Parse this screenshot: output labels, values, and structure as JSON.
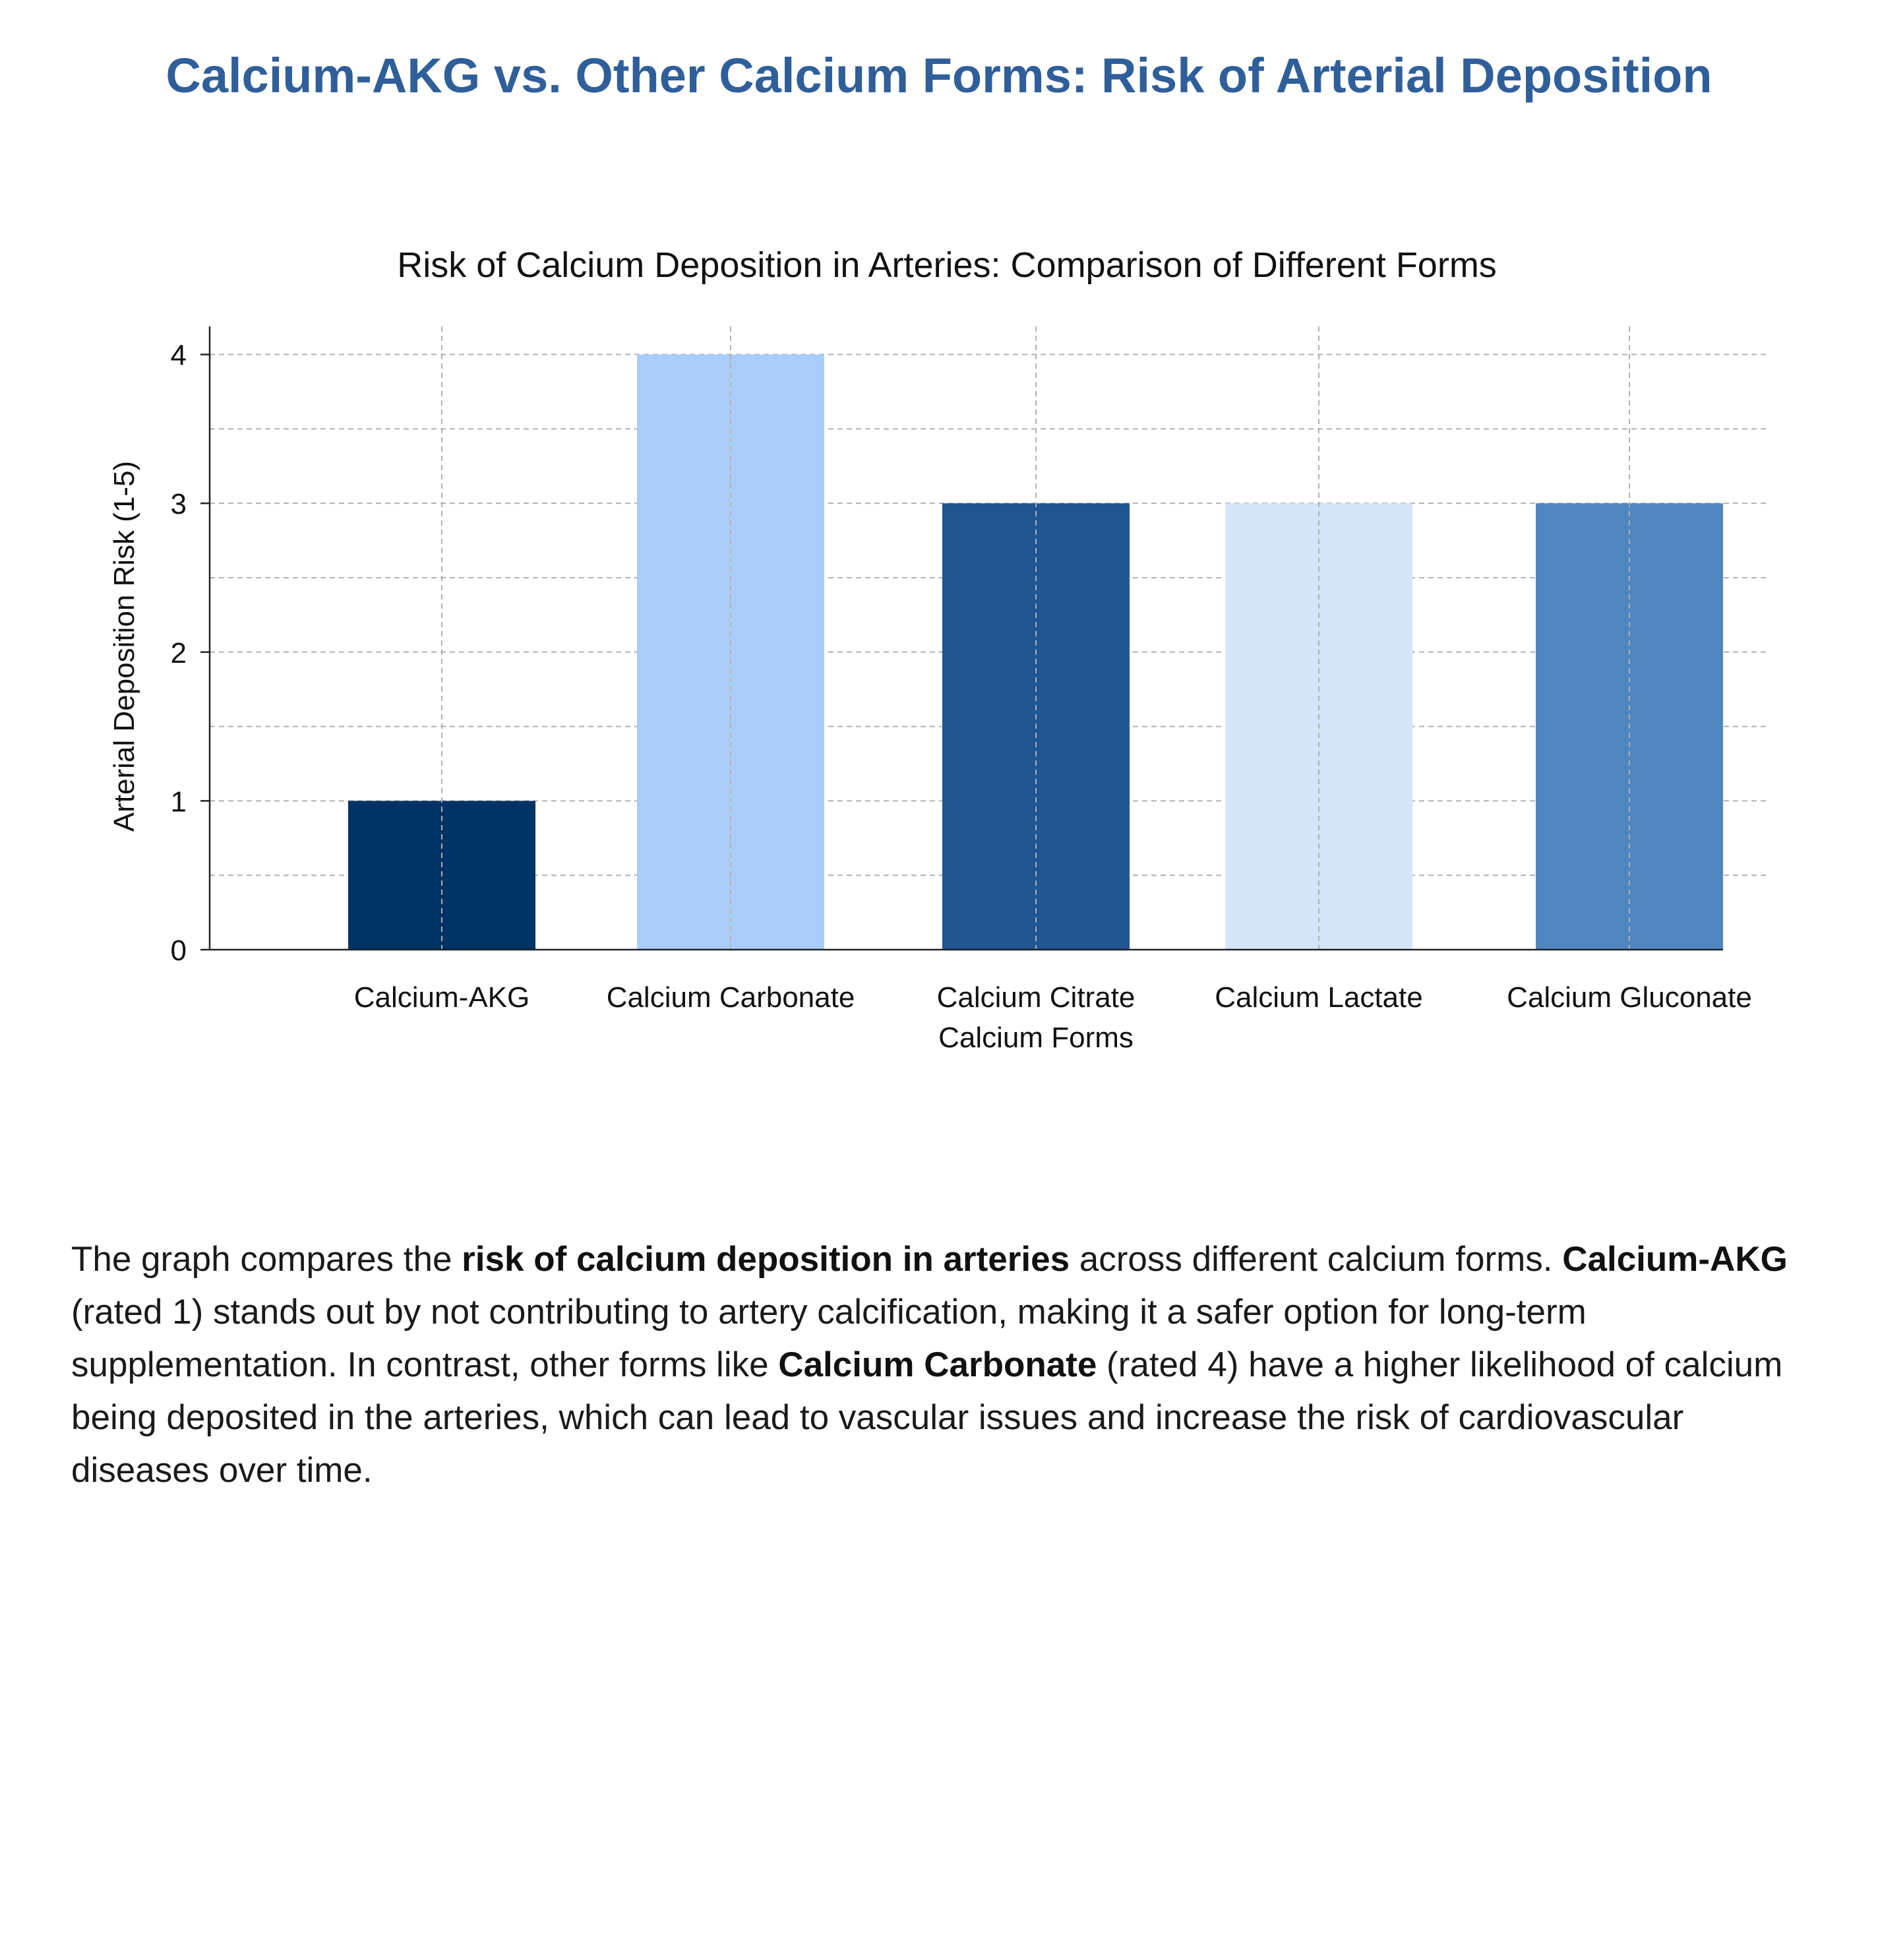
{
  "page": {
    "title": "Calcium-AKG vs. Other Calcium Forms: Risk of Arterial Deposition"
  },
  "chart_data": {
    "type": "bar",
    "title": "Risk of Calcium Deposition in Arteries: Comparison of Different Forms",
    "xlabel": "Calcium Forms",
    "ylabel": "Arterial Deposition Risk (1-5)",
    "categories": [
      "Calcium-AKG",
      "Calcium Carbonate",
      "Calcium Citrate",
      "Calcium Lactate",
      "Calcium Gluconate"
    ],
    "values": [
      1,
      4,
      3,
      3,
      3
    ],
    "colors": [
      "#003366",
      "#aaccfb",
      "#215593",
      "#d4e5fa",
      "#4f86bf"
    ],
    "ylim": [
      0,
      4.1
    ],
    "yticks": [
      0,
      1,
      2,
      3,
      4
    ],
    "grid": true,
    "grid_color": "#b0b0b0"
  },
  "caption": {
    "p1": "The graph compares the ",
    "b1": "risk of calcium deposition in arteries",
    "p2": " across different calcium forms. ",
    "b2": "Calcium-AKG",
    "p3": " (rated 1) stands out by not contributing to artery calcification, making it a safer option for long-term supplementation. In contrast, other forms like ",
    "b3": "Calcium Carbonate",
    "p4": " (rated 4) have a higher likelihood of calcium being deposited in the arteries, which can lead to vascular issues and increase the risk of cardiovascular diseases over time."
  }
}
